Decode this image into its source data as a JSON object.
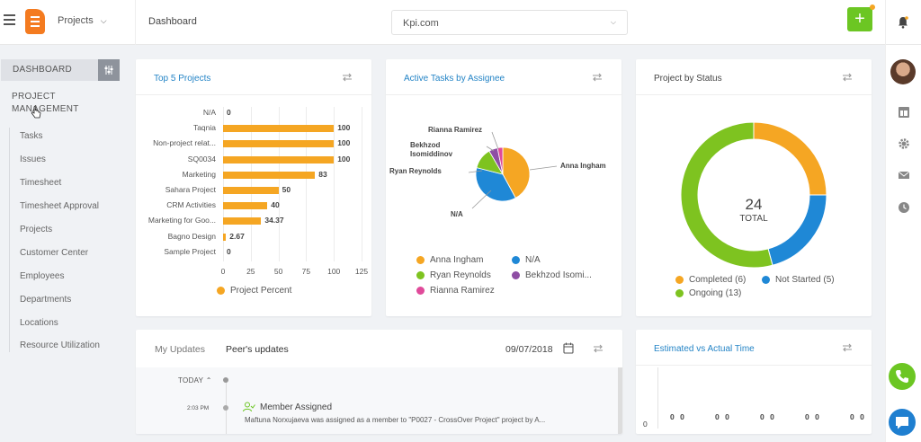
{
  "topbar": {
    "project_switcher": "Projects",
    "breadcrumb": "Dashboard",
    "site_value": "Kpi.com",
    "add_label": "+"
  },
  "sidebar": {
    "dashboard_tab": "DASHBOARD",
    "section_title": "PROJECT MANAGEMENT",
    "items": [
      {
        "label": "Tasks"
      },
      {
        "label": "Issues"
      },
      {
        "label": "Timesheet"
      },
      {
        "label": "Timesheet Approval"
      },
      {
        "label": "Projects"
      },
      {
        "label": "Customer Center"
      },
      {
        "label": "Employees"
      },
      {
        "label": "Departments"
      },
      {
        "label": "Locations"
      },
      {
        "label": "Resource Utilization"
      }
    ]
  },
  "cards": {
    "top5": {
      "title": "Top 5 Projects",
      "legend": "Project Percent"
    },
    "assignee": {
      "title": "Active Tasks by Assignee"
    },
    "status": {
      "title": "Project by Status",
      "total_value": "24",
      "total_label": "TOTAL"
    },
    "updates": {
      "tab_mine": "My Updates",
      "tab_peers": "Peer's updates",
      "date": "09/07/2018"
    },
    "estimated": {
      "title": "Estimated vs Actual Time",
      "axis_zero": "0",
      "zero_label": "0"
    }
  },
  "timeline": {
    "today_label": "TODAY",
    "time": "2:03 PM",
    "event_title": "Member Assigned",
    "event_desc": "Maftuna Norxujaeva was assigned as a member to \"P0027 - CrossOver Project\" project by A..."
  },
  "colors": {
    "accent_blue": "#2484c6",
    "orange": "#f5a623",
    "green": "#7ec320",
    "blue": "#1f88d6",
    "purple": "#8e4ea4",
    "pink": "#e04a9a",
    "brand_green": "#6cc623"
  },
  "icons": {
    "menu": "hamburger-menu-icon",
    "logo": "kpi-logo-icon",
    "bell": "bell-icon",
    "refresh": "refresh-icon",
    "calendar": "calendar-icon",
    "settings": "sliders-icon",
    "phone": "phone-icon",
    "chat": "chat-icon"
  },
  "chart_data": [
    {
      "type": "bar",
      "orientation": "horizontal",
      "title": "Top 5 Projects",
      "categories": [
        "N/A",
        "Taqnia",
        "Non-project relat...",
        "SQ0034",
        "Marketing",
        "Sahara Project",
        "CRM Activities",
        "Marketing for Goo...",
        "Bagno Design",
        "Sample Project"
      ],
      "values": [
        0,
        100,
        100,
        100,
        83,
        50,
        40,
        34.37,
        2.67,
        0
      ],
      "value_labels": [
        "0",
        "100",
        "100",
        "100",
        "83",
        "50",
        "40",
        "34.37",
        "2.67",
        "0"
      ],
      "x_ticks": [
        "0",
        "25",
        "50",
        "75",
        "100",
        "125"
      ],
      "xlim": [
        0,
        125
      ],
      "series": [
        {
          "name": "Project Percent",
          "color": "#f5a623"
        }
      ],
      "legend": "bottom"
    },
    {
      "type": "pie",
      "title": "Active Tasks by Assignee",
      "slices": [
        {
          "label": "Anna Ingham",
          "value": 40,
          "color": "#f5a623"
        },
        {
          "label": "N/A",
          "value": 35,
          "color": "#1f88d6"
        },
        {
          "label": "Ryan Reynolds",
          "value": 12,
          "color": "#7ec320"
        },
        {
          "label": "Bekhzod Isomiddinov",
          "value": 5,
          "color": "#8e4ea4"
        },
        {
          "label": "Rianna Ramirez",
          "value": 3,
          "color": "#e04a9a"
        }
      ],
      "legend_labels": [
        "Anna Ingham",
        "N/A",
        "Ryan Reynolds",
        "Bekhzod Isomi...",
        "Rianna Ramirez"
      ],
      "legend": "bottom"
    },
    {
      "type": "pie",
      "variant": "donut",
      "title": "Project by Status",
      "slices": [
        {
          "label": "Completed",
          "value": 6,
          "color": "#f5a623"
        },
        {
          "label": "Not Started",
          "value": 5,
          "color": "#1f88d6"
        },
        {
          "label": "Ongoing",
          "value": 13,
          "color": "#7ec320"
        }
      ],
      "legend_labels": [
        "Completed (6)",
        "Not Started (5)",
        "Ongoing (13)"
      ],
      "legend": "bottom"
    },
    {
      "type": "bar",
      "title": "Estimated vs Actual Time",
      "value_labels": [
        "0 0",
        "0 0",
        "0 0",
        "0 0",
        "0 0"
      ],
      "values": [
        [
          0,
          0
        ],
        [
          0,
          0
        ],
        [
          0,
          0
        ],
        [
          0,
          0
        ],
        [
          0,
          0
        ]
      ],
      "y_ticks": [
        "0"
      ]
    }
  ]
}
